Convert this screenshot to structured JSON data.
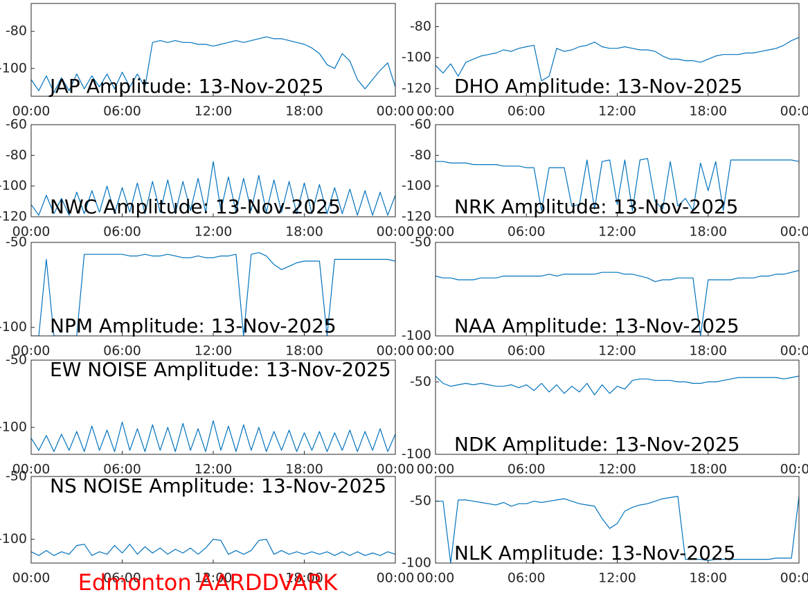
{
  "chart_data": [
    {
      "type": "line",
      "title": "JAP Amplitude: 13-Nov-2025",
      "color": "#0072bd",
      "x": [
        0,
        0.5,
        1,
        1.5,
        2,
        2.5,
        3,
        3.5,
        4,
        4.5,
        5,
        5.5,
        6,
        6.5,
        7,
        7.5,
        8,
        8.5,
        9,
        9.5,
        10,
        10.5,
        11,
        11.5,
        12,
        12.5,
        13,
        13.5,
        14,
        14.5,
        15,
        15.5,
        16,
        16.5,
        17,
        17.5,
        18,
        18.5,
        19,
        19.5,
        20,
        20.5,
        21,
        21.5,
        22,
        22.5,
        23,
        23.5,
        24
      ],
      "values": [
        -106,
        -112,
        -104,
        -113,
        -105,
        -112,
        -103,
        -111,
        -104,
        -110,
        -103,
        -111,
        -102,
        -110,
        -103,
        -110,
        -86,
        -85,
        -86,
        -85,
        -86,
        -86,
        -87,
        -87,
        -88,
        -87,
        -86,
        -85,
        -86,
        -85,
        -84,
        -83,
        -84,
        -84,
        -85,
        -86,
        -87,
        -89,
        -92,
        -98,
        -100,
        -92,
        -96,
        -106,
        -111,
        -106,
        -101,
        -97,
        -110
      ],
      "xlim": [
        0,
        24
      ],
      "xticks": [
        {
          "value": 0,
          "label": "00:00"
        },
        {
          "value": 6,
          "label": "06:00"
        },
        {
          "value": 12,
          "label": "12:00"
        },
        {
          "value": 18,
          "label": "18:00"
        },
        {
          "value": 24,
          "label": "00:00"
        }
      ],
      "ylim": [
        -115,
        -65
      ],
      "yticks": [
        -100,
        -80
      ]
    },
    {
      "type": "line",
      "title": "DHO Amplitude: 13-Nov-2025",
      "color": "#0072bd",
      "x": [
        0,
        0.5,
        1,
        1.5,
        2,
        2.5,
        3,
        3.5,
        4,
        4.5,
        5,
        5.5,
        6,
        6.5,
        7,
        7.5,
        8,
        8.5,
        9,
        9.5,
        10,
        10.5,
        11,
        11.5,
        12,
        12.5,
        13,
        13.5,
        14,
        14.5,
        15,
        15.5,
        16,
        16.5,
        17,
        17.5,
        18,
        18.5,
        19,
        19.5,
        20,
        20.5,
        21,
        21.5,
        22,
        22.5,
        23,
        23.5,
        24
      ],
      "values": [
        -105,
        -110,
        -104,
        -112,
        -103,
        -101,
        -99,
        -98,
        -97,
        -95,
        -96,
        -94,
        -93,
        -92,
        -115,
        -112,
        -94,
        -96,
        -95,
        -93,
        -92,
        -90,
        -93,
        -94,
        -94,
        -93,
        -94,
        -95,
        -95,
        -96,
        -99,
        -101,
        -101,
        -102,
        -102,
        -103,
        -101,
        -99,
        -98,
        -98,
        -98,
        -97,
        -97,
        -96,
        -95,
        -94,
        -92,
        -89,
        -87
      ],
      "xlim": [
        0,
        24
      ],
      "xticks": [
        {
          "value": 0,
          "label": "00:00"
        },
        {
          "value": 6,
          "label": "06:00"
        },
        {
          "value": 12,
          "label": "12:00"
        },
        {
          "value": 18,
          "label": "18:00"
        },
        {
          "value": 24,
          "label": "00:00"
        }
      ],
      "ylim": [
        -125,
        -65
      ],
      "yticks": [
        -120,
        -100,
        -80
      ]
    },
    {
      "type": "line",
      "title": "NWC Amplitude: 13-Nov-2025",
      "color": "#0072bd",
      "x": [
        0,
        0.5,
        1,
        1.5,
        2,
        2.5,
        3,
        3.5,
        4,
        4.5,
        5,
        5.5,
        6,
        6.5,
        7,
        7.5,
        8,
        8.5,
        9,
        9.5,
        10,
        10.5,
        11,
        11.5,
        12,
        12.5,
        13,
        13.5,
        14,
        14.5,
        15,
        15.5,
        16,
        16.5,
        17,
        17.5,
        18,
        18.5,
        19,
        19.5,
        20,
        20.5,
        21,
        21.5,
        22,
        22.5,
        23,
        23.5,
        24
      ],
      "values": [
        -112,
        -119,
        -106,
        -118,
        -108,
        -119,
        -104,
        -118,
        -103,
        -117,
        -100,
        -118,
        -101,
        -117,
        -98,
        -118,
        -97,
        -117,
        -96,
        -118,
        -97,
        -116,
        -95,
        -117,
        -84,
        -116,
        -94,
        -117,
        -95,
        -116,
        -93,
        -117,
        -96,
        -117,
        -97,
        -118,
        -98,
        -118,
        -99,
        -118,
        -101,
        -118,
        -102,
        -119,
        -103,
        -119,
        -104,
        -119,
        -106
      ],
      "xlim": [
        0,
        24
      ],
      "xticks": [
        {
          "value": 0,
          "label": "00:00"
        },
        {
          "value": 6,
          "label": "06:00"
        },
        {
          "value": 12,
          "label": "12:00"
        },
        {
          "value": 18,
          "label": "18:00"
        },
        {
          "value": 24,
          "label": "00:00"
        }
      ],
      "ylim": [
        -120,
        -60
      ],
      "yticks": [
        -120,
        -100,
        -80,
        -60
      ]
    },
    {
      "type": "line",
      "title": "NRK Amplitude: 13-Nov-2025",
      "color": "#0072bd",
      "x": [
        0,
        0.5,
        1,
        1.5,
        2,
        2.5,
        3,
        3.5,
        4,
        4.5,
        5,
        5.5,
        6,
        6.5,
        7,
        7.5,
        8,
        8.5,
        9,
        9.5,
        10,
        10.5,
        11,
        11.5,
        12,
        12.5,
        13,
        13.5,
        14,
        14.5,
        15,
        15.5,
        16,
        16.5,
        17,
        17.5,
        18,
        18.5,
        19,
        19.5,
        20,
        20.5,
        21,
        21.5,
        22,
        22.5,
        23,
        23.5,
        24
      ],
      "values": [
        -84,
        -84,
        -85,
        -85,
        -85,
        -86,
        -86,
        -86,
        -86,
        -87,
        -87,
        -87,
        -88,
        -88,
        -116,
        -88,
        -88,
        -88,
        -113,
        -112,
        -83,
        -115,
        -84,
        -83,
        -112,
        -83,
        -116,
        -83,
        -82,
        -110,
        -115,
        -84,
        -113,
        -108,
        -116,
        -85,
        -103,
        -84,
        -116,
        -83,
        -83,
        -83,
        -83,
        -83,
        -83,
        -83,
        -83,
        -83,
        -84
      ],
      "xlim": [
        0,
        24
      ],
      "xticks": [
        {
          "value": 0,
          "label": "00:00"
        },
        {
          "value": 6,
          "label": "06:00"
        },
        {
          "value": 12,
          "label": "12:00"
        },
        {
          "value": 18,
          "label": "18:00"
        },
        {
          "value": 24,
          "label": "00:00"
        }
      ],
      "ylim": [
        -120,
        -60
      ],
      "yticks": [
        -120,
        -100,
        -80,
        -60
      ]
    },
    {
      "type": "line",
      "title": "NPM Amplitude: 13-Nov-2025",
      "color": "#0072bd",
      "x": [
        0,
        0.5,
        1,
        1.5,
        2,
        2.5,
        3,
        3.5,
        4,
        4.5,
        5,
        5.5,
        6,
        6.5,
        7,
        7.5,
        8,
        8.5,
        9,
        9.5,
        10,
        10.5,
        11,
        11.5,
        12,
        12.5,
        13,
        13.5,
        14,
        14.5,
        15,
        15.5,
        16,
        16.5,
        17,
        17.5,
        18,
        18.5,
        19,
        19.5,
        20,
        20.5,
        21,
        21.5,
        22,
        22.5,
        23,
        23.5,
        24
      ],
      "values": [
        -105,
        -105,
        -60,
        -105,
        -105,
        -105,
        -105,
        -57,
        -57,
        -57,
        -57,
        -57,
        -57,
        -58,
        -58,
        -57,
        -58,
        -58,
        -57,
        -58,
        -59,
        -59,
        -58,
        -59,
        -59,
        -58,
        -58,
        -57,
        -105,
        -57,
        -56,
        -58,
        -63,
        -66,
        -64,
        -62,
        -61,
        -61,
        -61,
        -105,
        -60,
        -60,
        -60,
        -60,
        -60,
        -60,
        -60,
        -60,
        -61
      ],
      "xlim": [
        0,
        24
      ],
      "xticks": [
        {
          "value": 0,
          "label": "00:00"
        },
        {
          "value": 6,
          "label": "06:00"
        },
        {
          "value": 12,
          "label": "12:00"
        },
        {
          "value": 18,
          "label": "18:00"
        },
        {
          "value": 24,
          "label": "00:00"
        }
      ],
      "ylim": [
        -105,
        -50
      ],
      "yticks": [
        -100,
        -50
      ]
    },
    {
      "type": "line",
      "title": "NAA Amplitude: 13-Nov-2025",
      "color": "#0072bd",
      "x": [
        0,
        0.5,
        1,
        1.5,
        2,
        2.5,
        3,
        3.5,
        4,
        4.5,
        5,
        5.5,
        6,
        6.5,
        7,
        7.5,
        8,
        8.5,
        9,
        9.5,
        10,
        10.5,
        11,
        11.5,
        12,
        12.5,
        13,
        13.5,
        14,
        14.5,
        15,
        15.5,
        16,
        16.5,
        17,
        17.5,
        18,
        18.5,
        19,
        19.5,
        20,
        20.5,
        21,
        21.5,
        22,
        22.5,
        23,
        23.5,
        24
      ],
      "values": [
        -68,
        -69,
        -69,
        -70,
        -70,
        -70,
        -69,
        -69,
        -69,
        -68,
        -68,
        -68,
        -68,
        -68,
        -68,
        -67,
        -68,
        -67,
        -67,
        -67,
        -67,
        -67,
        -66,
        -66,
        -66,
        -67,
        -67,
        -68,
        -69,
        -71,
        -70,
        -70,
        -69,
        -69,
        -69,
        -100,
        -70,
        -70,
        -70,
        -70,
        -69,
        -69,
        -69,
        -68,
        -68,
        -67,
        -67,
        -66,
        -65
      ],
      "xlim": [
        0,
        24
      ],
      "xticks": [
        {
          "value": 0,
          "label": "00:00"
        },
        {
          "value": 6,
          "label": "06:00"
        },
        {
          "value": 12,
          "label": "12:00"
        },
        {
          "value": 18,
          "label": "18:00"
        },
        {
          "value": 24,
          "label": "00:00"
        }
      ],
      "ylim": [
        -100,
        -50
      ],
      "yticks": [
        -100,
        -50
      ]
    },
    {
      "type": "line",
      "title": "EW NOISE Amplitude: 13-Nov-2025",
      "color": "#0072bd",
      "x": [
        0,
        0.5,
        1,
        1.5,
        2,
        2.5,
        3,
        3.5,
        4,
        4.5,
        5,
        5.5,
        6,
        6.5,
        7,
        7.5,
        8,
        8.5,
        9,
        9.5,
        10,
        10.5,
        11,
        11.5,
        12,
        12.5,
        13,
        13.5,
        14,
        14.5,
        15,
        15.5,
        16,
        16.5,
        17,
        17.5,
        18,
        18.5,
        19,
        19.5,
        20,
        20.5,
        21,
        21.5,
        22,
        22.5,
        23,
        23.5,
        24
      ],
      "values": [
        -108,
        -117,
        -106,
        -118,
        -105,
        -117,
        -103,
        -118,
        -99,
        -117,
        -102,
        -118,
        -96,
        -117,
        -101,
        -118,
        -98,
        -117,
        -100,
        -118,
        -97,
        -117,
        -101,
        -118,
        -95,
        -117,
        -99,
        -118,
        -98,
        -117,
        -100,
        -118,
        -103,
        -117,
        -102,
        -118,
        -104,
        -117,
        -103,
        -118,
        -104,
        -117,
        -102,
        -118,
        -103,
        -117,
        -101,
        -118,
        -105
      ],
      "xlim": [
        0,
        24
      ],
      "xticks": [
        {
          "value": 0,
          "label": "00:00"
        },
        {
          "value": 6,
          "label": "06:00"
        },
        {
          "value": 12,
          "label": "12:00"
        },
        {
          "value": 18,
          "label": "18:00"
        },
        {
          "value": 24,
          "label": "00:00"
        }
      ],
      "ylim": [
        -120,
        -50
      ],
      "yticks": [
        -100,
        -50
      ]
    },
    {
      "type": "line",
      "title": "NDK Amplitude: 13-Nov-2025",
      "color": "#0072bd",
      "x": [
        0,
        0.5,
        1,
        1.5,
        2,
        2.5,
        3,
        3.5,
        4,
        4.5,
        5,
        5.5,
        6,
        6.5,
        7,
        7.5,
        8,
        8.5,
        9,
        9.5,
        10,
        10.5,
        11,
        11.5,
        12,
        12.5,
        13,
        13.5,
        14,
        14.5,
        15,
        15.5,
        16,
        16.5,
        17,
        17.5,
        18,
        18.5,
        19,
        19.5,
        20,
        20.5,
        21,
        21.5,
        22,
        22.5,
        23,
        23.5,
        24
      ],
      "values": [
        -46,
        -51,
        -53,
        -52,
        -51,
        -52,
        -51,
        -52,
        -53,
        -53,
        -52,
        -54,
        -52,
        -56,
        -51,
        -57,
        -52,
        -58,
        -53,
        -57,
        -51,
        -59,
        -52,
        -58,
        -53,
        -55,
        -49,
        -48,
        -48,
        -49,
        -49,
        -49,
        -50,
        -50,
        -51,
        -51,
        -50,
        -50,
        -49,
        -48,
        -47,
        -47,
        -47,
        -47,
        -47,
        -47,
        -48,
        -47,
        -46
      ],
      "xlim": [
        0,
        24
      ],
      "xticks": [
        {
          "value": 0,
          "label": "00:00"
        },
        {
          "value": 6,
          "label": "06:00"
        },
        {
          "value": 12,
          "label": "12:00"
        },
        {
          "value": 18,
          "label": "18:00"
        },
        {
          "value": 24,
          "label": "00:00"
        }
      ],
      "ylim": [
        -100,
        -35
      ],
      "yticks": [
        -100,
        -50
      ]
    },
    {
      "type": "line",
      "title": "NS NOISE Amplitude: 13-Nov-2025",
      "color": "#0072bd",
      "x": [
        0,
        0.5,
        1,
        1.5,
        2,
        2.5,
        3,
        3.5,
        4,
        4.5,
        5,
        5.5,
        6,
        6.5,
        7,
        7.5,
        8,
        8.5,
        9,
        9.5,
        10,
        10.5,
        11,
        11.5,
        12,
        12.5,
        13,
        13.5,
        14,
        14.5,
        15,
        15.5,
        16,
        16.5,
        17,
        17.5,
        18,
        18.5,
        19,
        19.5,
        20,
        20.5,
        21,
        21.5,
        22,
        22.5,
        23,
        23.5,
        24
      ],
      "values": [
        -110,
        -113,
        -109,
        -113,
        -110,
        -112,
        -105,
        -104,
        -113,
        -110,
        -112,
        -105,
        -111,
        -104,
        -112,
        -106,
        -111,
        -107,
        -112,
        -108,
        -111,
        -107,
        -112,
        -107,
        -100,
        -101,
        -112,
        -109,
        -112,
        -109,
        -101,
        -100,
        -112,
        -109,
        -112,
        -110,
        -112,
        -110,
        -112,
        -110,
        -113,
        -110,
        -113,
        -110,
        -113,
        -111,
        -113,
        -110,
        -112
      ],
      "xlim": [
        0,
        24
      ],
      "xticks": [
        {
          "value": 0,
          "label": "00:00"
        },
        {
          "value": 6,
          "label": "06:00"
        },
        {
          "value": 12,
          "label": "12:00"
        },
        {
          "value": 18,
          "label": "18:00"
        },
        {
          "value": 24,
          "label": "00:00"
        }
      ],
      "ylim": [
        -119,
        -50
      ],
      "yticks": [
        -100,
        -50
      ]
    },
    {
      "type": "line",
      "title": "NLK Amplitude: 13-Nov-2025",
      "color": "#0072bd",
      "x": [
        0,
        0.5,
        1,
        1.5,
        2,
        2.5,
        3,
        3.5,
        4,
        4.5,
        5,
        5.5,
        6,
        6.5,
        7,
        7.5,
        8,
        8.5,
        9,
        9.5,
        10,
        10.5,
        11,
        11.5,
        12,
        12.5,
        13,
        13.5,
        14,
        14.5,
        15,
        15.5,
        16,
        16.5,
        17,
        17.5,
        18,
        18.5,
        19,
        19.5,
        20,
        20.5,
        21,
        21.5,
        22,
        22.5,
        23,
        23.5,
        24
      ],
      "values": [
        -50,
        -50,
        -100,
        -49,
        -49,
        -50,
        -51,
        -52,
        -53,
        -51,
        -54,
        -52,
        -52,
        -50,
        -51,
        -50,
        -49,
        -48,
        -50,
        -52,
        -53,
        -54,
        -64,
        -72,
        -68,
        -58,
        -55,
        -53,
        -52,
        -50,
        -48,
        -47,
        -46,
        -97,
        -97,
        -97,
        -98,
        -97,
        -97,
        -97,
        -97,
        -97,
        -97,
        -97,
        -97,
        -96,
        -96,
        -96,
        -46
      ],
      "xlim": [
        0,
        24
      ],
      "xticks": [
        {
          "value": 0,
          "label": "00:00"
        },
        {
          "value": 6,
          "label": "06:00"
        },
        {
          "value": 12,
          "label": "12:00"
        },
        {
          "value": 18,
          "label": "18:00"
        },
        {
          "value": 24,
          "label": "00:00"
        }
      ],
      "ylim": [
        -100,
        -30
      ],
      "yticks": [
        -100,
        -50
      ]
    }
  ],
  "footer": "Edmonton AARDDVARK"
}
